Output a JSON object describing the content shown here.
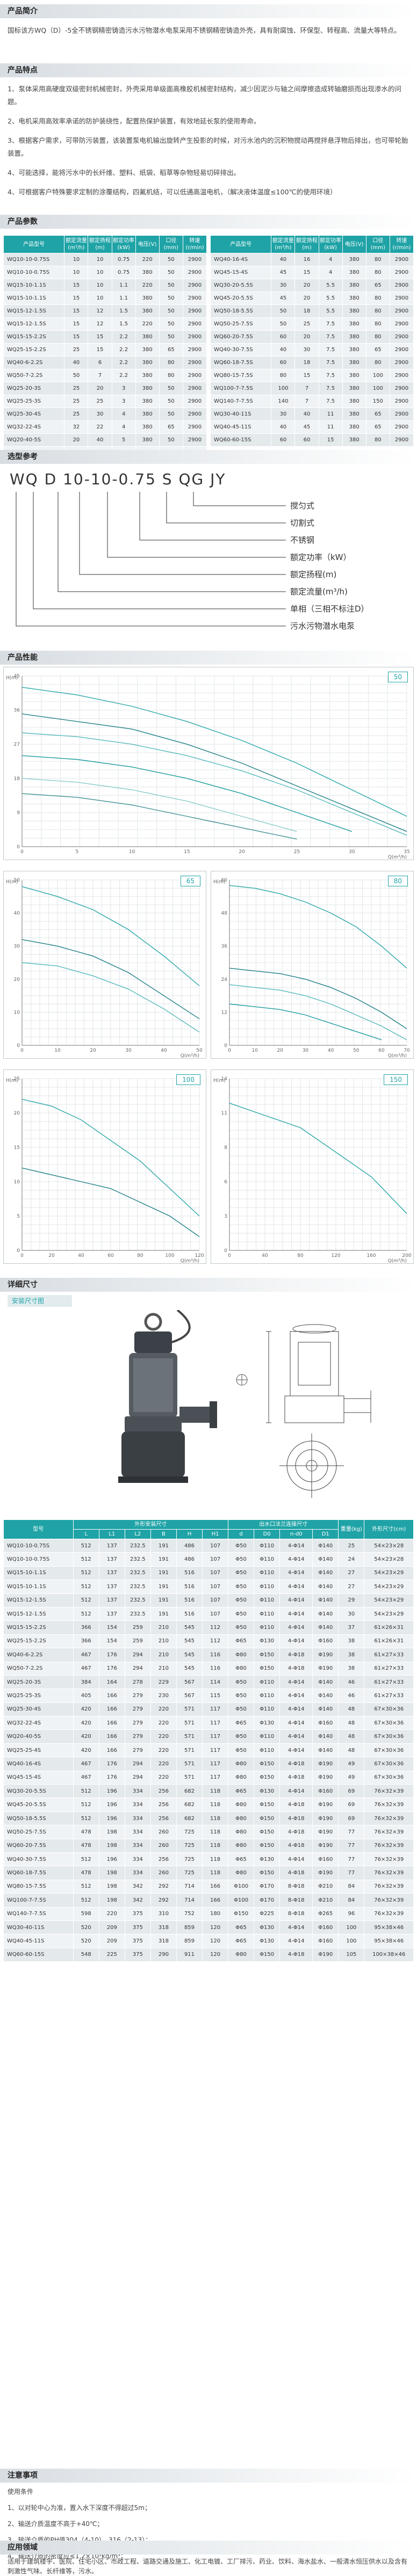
{
  "sections": {
    "intro": "产品简介",
    "features": "产品特点",
    "params": "产品参数",
    "model_code": "选型参考",
    "performance": "产品性能",
    "dimensions": "详细尺寸",
    "notes": "注意事项",
    "applications": "应用领域"
  },
  "intro_text": "国标该方WQ（D）-5全不锈钢精密铸造污水污物潜水电泵采用不锈钢精密铸造外壳，具有耐腐蚀、环保型、转程高、流量大等特点。",
  "features": [
    "1、泵体采用高硬度双级密封机械密封，外壳采用单级面高橡胶机械密封结构，减少因泥沙与轴之间摩擦造成转轴磨损而出现渗水的问题。",
    "2、电机采用高效率承诺的防护装绕性，配置热保护装置，有效地延长泵的使用寿命。",
    "3、根据客户需求，可带防污装置，该装置泵电机输出旋转产生投影的时候，对污水池内的沉积物搅动再搅拌悬浮物后排出，也可带轮胎装置。",
    "4、可能选择，能将污水中的长纤维、塑料、纸袋、稻草等杂物轻易切碎排出。",
    "4、可根据客户特殊要求定制的涂覆结构，四氟机结，可以低通高温电机，（解决液体温度≤100℃的使用环境）"
  ],
  "param_headers": [
    "产品型号",
    "额定流量(m³/h)",
    "额定扬程(m)",
    "额定功率(kW)",
    "电压(V)",
    "口径(mm)",
    "转速(r/min)"
  ],
  "params_left": [
    [
      "WQ10-10-0.75S",
      "10",
      "10",
      "0.75",
      "220",
      "50",
      "2900"
    ],
    [
      "WQ10-10-0.75S",
      "10",
      "10",
      "0.75",
      "380",
      "50",
      "2900"
    ],
    [
      "WQ15-10-1.1S",
      "15",
      "10",
      "1.1",
      "220",
      "50",
      "2900"
    ],
    [
      "WQ15-10-1.1S",
      "15",
      "10",
      "1.1",
      "380",
      "50",
      "2900"
    ],
    [
      "WQ15-12-1.5S",
      "15",
      "12",
      "1.5",
      "380",
      "50",
      "2900"
    ],
    [
      "WQ15-12-1.5S",
      "15",
      "12",
      "1.5",
      "220",
      "50",
      "2900"
    ],
    [
      "WQ15-15-2.2S",
      "15",
      "15",
      "2.2",
      "380",
      "50",
      "2900"
    ],
    [
      "WQ25-15-2.2S",
      "25",
      "15",
      "2.2",
      "380",
      "65",
      "2900"
    ],
    [
      "WQ40-6-2.2S",
      "40",
      "6",
      "2.2",
      "380",
      "80",
      "2900"
    ],
    [
      "WQ50-7-2.2S",
      "50",
      "7",
      "2.2",
      "380",
      "80",
      "2900"
    ],
    [
      "WQ25-20-3S",
      "25",
      "20",
      "3",
      "380",
      "50",
      "2900"
    ],
    [
      "WQ25-25-3S",
      "25",
      "25",
      "3",
      "380",
      "50",
      "2900"
    ],
    [
      "WQ25-30-4S",
      "25",
      "30",
      "4",
      "380",
      "50",
      "2900"
    ],
    [
      "WQ32-22-4S",
      "32",
      "22",
      "4",
      "380",
      "65",
      "2900"
    ],
    [
      "WQ20-40-5S",
      "20",
      "40",
      "5",
      "380",
      "50",
      "2900"
    ],
    [
      "WQ25-25-4S",
      "25",
      "25",
      "4",
      "380",
      "50",
      "2900"
    ]
  ],
  "params_right": [
    [
      "WQ40-16-4S",
      "40",
      "16",
      "4",
      "380",
      "80",
      "2900"
    ],
    [
      "WQ45-15-4S",
      "45",
      "15",
      "4",
      "380",
      "80",
      "2900"
    ],
    [
      "WQ30-20-5.5S",
      "30",
      "20",
      "5.5",
      "380",
      "65",
      "2900"
    ],
    [
      "WQ45-20-5.5S",
      "45",
      "20",
      "5.5",
      "380",
      "80",
      "2900"
    ],
    [
      "WQ50-18-5.5S",
      "50",
      "18",
      "5.5",
      "380",
      "80",
      "2900"
    ],
    [
      "WQ50-25-7.5S",
      "50",
      "25",
      "7.5",
      "380",
      "80",
      "2900"
    ],
    [
      "WQ60-20-7.5S",
      "60",
      "20",
      "7.5",
      "380",
      "80",
      "2900"
    ],
    [
      "WQ40-30-7.5S",
      "40",
      "30",
      "7.5",
      "380",
      "65",
      "2900"
    ],
    [
      "WQ60-18-7.5S",
      "60",
      "18",
      "7.5",
      "380",
      "80",
      "2900"
    ],
    [
      "WQ80-15-7.5S",
      "80",
      "15",
      "7.5",
      "380",
      "100",
      "2900"
    ],
    [
      "WQ100-7-7.5S",
      "100",
      "7",
      "7.5",
      "380",
      "100",
      "2900"
    ],
    [
      "WQ140-7-7.5S",
      "140",
      "7",
      "7.5",
      "380",
      "150",
      "2900"
    ],
    [
      "WQ30-40-11S",
      "30",
      "40",
      "11",
      "380",
      "65",
      "2900"
    ],
    [
      "WQ40-45-11S",
      "40",
      "45",
      "11",
      "380",
      "65",
      "2900"
    ],
    [
      "WQ60-60-15S",
      "60",
      "60",
      "15",
      "380",
      "80",
      "2900"
    ]
  ],
  "model_code": {
    "text": "WQ D 10-10-0.75 S QG JY",
    "legend": [
      "搅匀式",
      "切割式",
      "不锈钢",
      "额定功率（kW）",
      "额定扬程(m)",
      "额定流量(m³/h)",
      "单相（三相不标注D）",
      "污水污物潜水电泵"
    ]
  },
  "chart_data": [
    {
      "type": "line",
      "title": "",
      "label": "50",
      "xlabel": "Q(m³/h)",
      "ylabel": "H(m)",
      "x": [
        0,
        5,
        10,
        15,
        20,
        25,
        30,
        35
      ],
      "xlim": [
        0,
        35
      ],
      "ylim": [
        0,
        45
      ],
      "series": [
        {
          "values": [
            42,
            40,
            37,
            33,
            28,
            22,
            15,
            8
          ]
        },
        {
          "values": [
            35,
            33,
            31,
            27,
            22,
            16,
            10,
            4
          ]
        },
        {
          "values": [
            30,
            29,
            27,
            24,
            20,
            15,
            9,
            3
          ]
        },
        {
          "values": [
            24,
            23,
            21,
            18,
            14,
            9,
            4,
            null
          ]
        },
        {
          "values": [
            18,
            17,
            15,
            12,
            8,
            4,
            null,
            null
          ]
        },
        {
          "values": [
            14,
            13,
            11,
            8,
            5,
            2,
            null,
            null
          ]
        }
      ]
    },
    {
      "type": "line",
      "title": "",
      "label": "65",
      "xlabel": "Q(m³/h)",
      "ylabel": "H(m)",
      "x": [
        0,
        10,
        20,
        30,
        40,
        50
      ],
      "xlim": [
        0,
        50
      ],
      "ylim": [
        0,
        50
      ],
      "series": [
        {
          "values": [
            48,
            45,
            41,
            35,
            27,
            18
          ]
        },
        {
          "values": [
            32,
            30,
            27,
            22,
            15,
            8
          ]
        },
        {
          "values": [
            25,
            24,
            21,
            17,
            11,
            4
          ]
        }
      ]
    },
    {
      "type": "line",
      "title": "",
      "label": "80",
      "xlabel": "Q(m³/h)",
      "ylabel": "H(m)",
      "x": [
        0,
        10,
        20,
        30,
        40,
        50,
        60,
        70
      ],
      "xlim": [
        0,
        70
      ],
      "ylim": [
        0,
        60
      ],
      "series": [
        {
          "values": [
            58,
            57,
            55,
            52,
            48,
            43,
            36,
            28
          ]
        },
        {
          "values": [
            28,
            27,
            26,
            24,
            21,
            17,
            12,
            6
          ]
        },
        {
          "values": [
            22,
            21,
            20,
            18,
            15,
            11,
            7,
            2
          ]
        },
        {
          "values": [
            15,
            14,
            13,
            11,
            8,
            5,
            2,
            null
          ]
        }
      ]
    },
    {
      "type": "line",
      "title": "",
      "label": "100",
      "xlabel": "Q(m³/h)",
      "ylabel": "H(m)",
      "x": [
        0,
        20,
        40,
        60,
        80,
        100,
        120
      ],
      "xlim": [
        0,
        120
      ],
      "ylim": [
        0,
        25
      ],
      "series": [
        {
          "values": [
            22,
            21,
            19,
            16,
            13,
            9,
            5
          ]
        },
        {
          "values": [
            12,
            11,
            10,
            9,
            7,
            5,
            2
          ]
        }
      ]
    },
    {
      "type": "line",
      "title": "",
      "label": "150",
      "xlabel": "Q(m³/h)",
      "ylabel": "H(m)",
      "x": [
        0,
        40,
        80,
        120,
        160,
        200
      ],
      "xlim": [
        0,
        200
      ],
      "ylim": [
        0,
        14
      ],
      "series": [
        {
          "values": [
            12,
            11,
            10,
            8,
            6,
            3
          ]
        }
      ]
    }
  ],
  "install_tab": "安装尺寸图",
  "dim_headers": [
    "型号",
    "L",
    "L1",
    "L2",
    "B",
    "H",
    "H1",
    "d",
    "D0",
    "n-d0",
    "D1",
    "重量(kg)",
    "外形尺寸(cm)"
  ],
  "dim_group_header": "外形安装尺寸",
  "dim_group_header2": "出水口法兰连接尺寸",
  "dims": [
    [
      "WQ10-10-0.75S",
      "512",
      "137",
      "232.5",
      "191",
      "486",
      "107",
      "Φ50",
      "Φ110",
      "4-Φ14",
      "Φ140",
      "25",
      "54×23×28"
    ],
    [
      "WQ10-10-0.75S",
      "512",
      "137",
      "232.5",
      "191",
      "486",
      "107",
      "Φ50",
      "Φ110",
      "4-Φ14",
      "Φ140",
      "24",
      "54×23×28"
    ],
    [
      "WQ15-10-1.1S",
      "512",
      "137",
      "232.5",
      "191",
      "516",
      "107",
      "Φ50",
      "Φ110",
      "4-Φ14",
      "Φ140",
      "27",
      "54×23×29"
    ],
    [
      "WQ15-10-1.1S",
      "512",
      "137",
      "232.5",
      "191",
      "516",
      "107",
      "Φ50",
      "Φ110",
      "4-Φ14",
      "Φ140",
      "27",
      "54×23×29"
    ],
    [
      "WQ15-12-1.5S",
      "512",
      "137",
      "232.5",
      "191",
      "516",
      "107",
      "Φ50",
      "Φ110",
      "4-Φ14",
      "Φ140",
      "29",
      "54×23×29"
    ],
    [
      "WQ15-12-1.5S",
      "512",
      "137",
      "232.5",
      "191",
      "516",
      "107",
      "Φ50",
      "Φ110",
      "4-Φ14",
      "Φ140",
      "30",
      "54×23×29"
    ],
    [
      "WQ15-15-2.2S",
      "366",
      "154",
      "259",
      "210",
      "545",
      "112",
      "Φ50",
      "Φ110",
      "4-Φ14",
      "Φ140",
      "37",
      "61×26×31"
    ],
    [
      "WQ25-15-2.2S",
      "366",
      "154",
      "259",
      "210",
      "545",
      "112",
      "Φ65",
      "Φ130",
      "4-Φ14",
      "Φ160",
      "38",
      "61×26×31"
    ],
    [
      "WQ40-6-2.2S",
      "467",
      "176",
      "294",
      "210",
      "545",
      "116",
      "Φ80",
      "Φ150",
      "4-Φ18",
      "Φ190",
      "38",
      "61×27×33"
    ],
    [
      "WQ50-7-2.2S",
      "467",
      "176",
      "294",
      "210",
      "545",
      "116",
      "Φ80",
      "Φ150",
      "4-Φ18",
      "Φ190",
      "38",
      "61×27×33"
    ],
    [
      "WQ25-20-3S",
      "384",
      "164",
      "278",
      "229",
      "567",
      "114",
      "Φ50",
      "Φ110",
      "4-Φ14",
      "Φ140",
      "46",
      "61×27×33"
    ],
    [
      "WQ25-25-3S",
      "405",
      "166",
      "279",
      "230",
      "567",
      "115",
      "Φ50",
      "Φ110",
      "4-Φ14",
      "Φ140",
      "46",
      "61×27×33"
    ],
    [
      "WQ25-30-4S",
      "420",
      "166",
      "279",
      "220",
      "571",
      "117",
      "Φ50",
      "Φ110",
      "4-Φ14",
      "Φ140",
      "48",
      "67×30×36"
    ],
    [
      "WQ32-22-4S",
      "420",
      "166",
      "279",
      "220",
      "571",
      "117",
      "Φ65",
      "Φ130",
      "4-Φ14",
      "Φ160",
      "48",
      "67×30×36"
    ],
    [
      "WQ20-40-5S",
      "420",
      "166",
      "279",
      "220",
      "571",
      "117",
      "Φ50",
      "Φ110",
      "4-Φ14",
      "Φ140",
      "48",
      "67×30×36"
    ],
    [
      "WQ25-25-4S",
      "420",
      "166",
      "279",
      "220",
      "571",
      "117",
      "Φ50",
      "Φ110",
      "4-Φ14",
      "Φ140",
      "48",
      "67×30×36"
    ],
    [
      "WQ40-16-4S",
      "467",
      "176",
      "294",
      "220",
      "571",
      "117",
      "Φ80",
      "Φ150",
      "4-Φ18",
      "Φ190",
      "49",
      "67×30×36"
    ],
    [
      "WQ45-15-4S",
      "467",
      "176",
      "294",
      "220",
      "571",
      "117",
      "Φ80",
      "Φ150",
      "4-Φ18",
      "Φ190",
      "49",
      "67×30×36"
    ],
    [
      "WQ30-20-5.5S",
      "512",
      "196",
      "334",
      "256",
      "682",
      "118",
      "Φ65",
      "Φ130",
      "4-Φ14",
      "Φ160",
      "69",
      "76×32×39"
    ],
    [
      "WQ45-20-5.5S",
      "512",
      "196",
      "334",
      "256",
      "682",
      "118",
      "Φ80",
      "Φ150",
      "4-Φ18",
      "Φ190",
      "69",
      "76×32×39"
    ],
    [
      "WQ50-18-5.5S",
      "512",
      "196",
      "334",
      "256",
      "682",
      "118",
      "Φ80",
      "Φ150",
      "4-Φ18",
      "Φ190",
      "69",
      "76×32×39"
    ],
    [
      "WQ50-25-7.5S",
      "478",
      "198",
      "334",
      "260",
      "725",
      "118",
      "Φ80",
      "Φ150",
      "4-Φ18",
      "Φ190",
      "77",
      "76×32×39"
    ],
    [
      "WQ60-20-7.5S",
      "478",
      "198",
      "334",
      "260",
      "725",
      "118",
      "Φ80",
      "Φ150",
      "4-Φ18",
      "Φ190",
      "77",
      "76×32×39"
    ],
    [
      "WQ40-30-7.5S",
      "512",
      "196",
      "334",
      "256",
      "725",
      "118",
      "Φ65",
      "Φ130",
      "4-Φ14",
      "Φ160",
      "77",
      "76×32×39"
    ],
    [
      "WQ60-18-7.5S",
      "478",
      "198",
      "334",
      "260",
      "725",
      "118",
      "Φ80",
      "Φ150",
      "4-Φ18",
      "Φ190",
      "77",
      "76×32×39"
    ],
    [
      "WQ80-15-7.5S",
      "512",
      "198",
      "342",
      "292",
      "714",
      "166",
      "Φ100",
      "Φ170",
      "8-Φ18",
      "Φ210",
      "84",
      "76×32×39"
    ],
    [
      "WQ100-7-7.5S",
      "512",
      "198",
      "342",
      "292",
      "714",
      "166",
      "Φ100",
      "Φ170",
      "8-Φ18",
      "Φ210",
      "84",
      "76×32×39"
    ],
    [
      "WQ140-7-7.5S",
      "598",
      "220",
      "375",
      "310",
      "752",
      "180",
      "Φ150",
      "Φ225",
      "8-Φ18",
      "Φ265",
      "96",
      "76×32×39"
    ],
    [
      "WQ30-40-11S",
      "520",
      "209",
      "375",
      "318",
      "859",
      "120",
      "Φ65",
      "Φ130",
      "4-Φ14",
      "Φ160",
      "100",
      "95×38×46"
    ],
    [
      "WQ40-45-11S",
      "520",
      "209",
      "375",
      "318",
      "859",
      "120",
      "Φ65",
      "Φ130",
      "4-Φ14",
      "Φ160",
      "100",
      "95×38×46"
    ],
    [
      "WQ60-60-15S",
      "548",
      "225",
      "375",
      "290",
      "911",
      "120",
      "Φ80",
      "Φ150",
      "4-Φ18",
      "Φ190",
      "105",
      "100×38×46"
    ]
  ],
  "notes_title": "使用条件",
  "notes": [
    "1、以对轮中心为准，置入水下深度不得超过5m；",
    "2、输送介质温度不高于+40℃；",
    "3、输送介质的PH值304（4-10），316（2-13）；",
    "4、输送介质的密度应≤1.2×10³kg/m³；"
  ],
  "applications_text": "适用于建筑楼宇、医院、住宅小区、市政工程、道路交通及施工、化工电镀、工厂排污、药业、饮料、海水盐水、一般清水恒压供水以及含有刺激性气味、长纤维等，污水。"
}
